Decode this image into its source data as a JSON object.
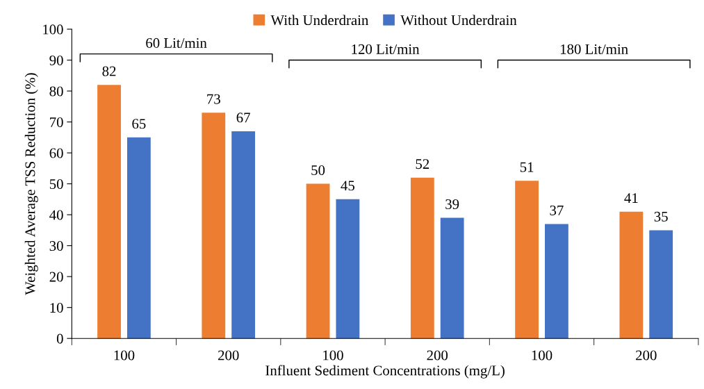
{
  "chart_data": {
    "type": "bar",
    "xlabel": "Influent Sediment Concentrations (mg/L)",
    "ylabel": "Weighted Average TSS Reduction (%)",
    "categories": [
      "100",
      "200",
      "100",
      "200",
      "100",
      "200"
    ],
    "series": [
      {
        "name": "With Underdrain",
        "color": "#ed7d31",
        "values": [
          82,
          73,
          50,
          52,
          51,
          41
        ]
      },
      {
        "name": "Without Underdrain",
        "color": "#4472c4",
        "values": [
          65,
          67,
          45,
          39,
          37,
          35
        ]
      }
    ],
    "ylim": [
      0,
      100
    ],
    "yticks": [
      0,
      10,
      20,
      30,
      40,
      50,
      60,
      70,
      80,
      90,
      100
    ],
    "grid": false,
    "legend": "top",
    "data_labels": true,
    "annotations": [
      "60 Lit/min",
      "120 Lit/min",
      "180 Lit/min"
    ]
  }
}
